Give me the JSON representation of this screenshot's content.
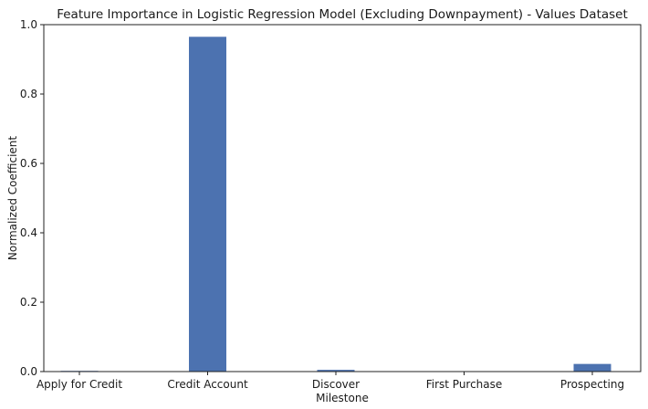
{
  "chart_data": {
    "type": "bar",
    "title": "Feature Importance in Logistic Regression Model (Excluding Downpayment) - Values Dataset",
    "xlabel": "Milestone",
    "ylabel": "Normalized Coefficient",
    "categories": [
      "Apply for Credit",
      "Credit Account",
      "Discover",
      "First Purchase",
      "Prospecting"
    ],
    "values": [
      0.002,
      0.965,
      0.005,
      0.001,
      0.022
    ],
    "ylim": [
      0,
      1.0
    ],
    "yticks": [
      "0.0",
      "0.2",
      "0.4",
      "0.6",
      "0.8",
      "1.0"
    ],
    "grid": false,
    "bar_color": "#4c72b0"
  }
}
